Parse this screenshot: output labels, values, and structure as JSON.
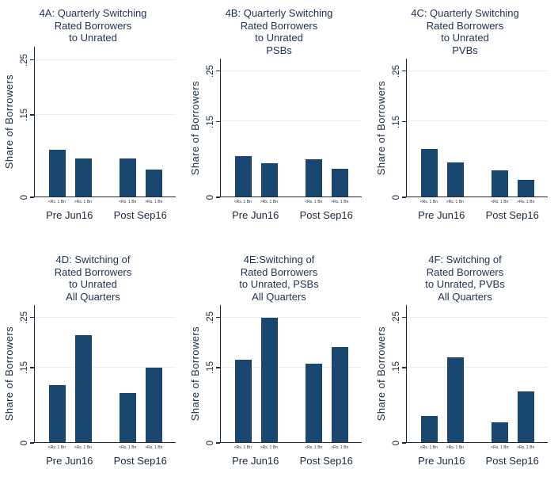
{
  "figure": {
    "background": "#ffffff",
    "bar_color": "#1a476f",
    "grid_color": "#eceeee",
    "axis_color": "#1c2b3a",
    "text_color": "#1a2b3d",
    "title_color": "#1d3150"
  },
  "axis": {
    "ylabel": "Share of Borrowers",
    "ytick_labels": [
      "0",
      ".15",
      ".25"
    ],
    "bar_labels": [
      "<Rs. 1 Bn",
      ">Rs. 1 Bn"
    ],
    "group_labels": [
      "Pre Jun16",
      "Post Sep16"
    ],
    "ymax": 0.275,
    "grid": true
  },
  "chart_data": [
    {
      "type": "bar",
      "panel": "4A",
      "title": "4A: Quarterly Switching\nRated Borrowers\nto Unrated",
      "categories": [
        "Pre Jun16 <Rs. 1 Bn",
        "Pre Jun16 >Rs. 1 Bn",
        "Post Sep16 <Rs. 1 Bn",
        "Post Sep16 >Rs. 1 Bn"
      ],
      "group_labels": [
        "Pre Jun16",
        "Post Sep16"
      ],
      "bar_labels": [
        "<Rs. 1 Bn",
        ">Rs. 1 Bn"
      ],
      "values": [
        0.085,
        0.07,
        0.07,
        0.05
      ],
      "xlabel": "",
      "ylabel": "Share of Borrowers",
      "yticks": [
        {
          "value": 0,
          "label": "0"
        },
        {
          "value": 0.15,
          "label": ".15"
        },
        {
          "value": 0.25,
          "label": ".25"
        }
      ],
      "ylim": [
        0,
        0.275
      ]
    },
    {
      "type": "bar",
      "panel": "4B",
      "title": "4B: Quarterly Switching\nRated Borrowers\nto Unrated\nPSBs",
      "categories": [
        "Pre Jun16 <Rs. 1 Bn",
        "Pre Jun16 >Rs. 1 Bn",
        "Post Sep16 <Rs. 1 Bn",
        "Post Sep16 >Rs. 1 Bn"
      ],
      "group_labels": [
        "Pre Jun16",
        "Post Sep16"
      ],
      "bar_labels": [
        "<Rs. 1 Bn",
        ">Rs. 1 Bn"
      ],
      "values": [
        0.08,
        0.067,
        0.075,
        0.055
      ],
      "xlabel": "",
      "ylabel": "Share of Borrowers",
      "yticks": [
        {
          "value": 0,
          "label": "0"
        },
        {
          "value": 0.15,
          "label": ".15"
        },
        {
          "value": 0.25,
          "label": ".25"
        }
      ],
      "ylim": [
        0,
        0.275
      ]
    },
    {
      "type": "bar",
      "panel": "4C",
      "title": "4C: Quarterly Switching\nRated Borrowers\nto Unrated\nPVBs",
      "categories": [
        "Pre Jun16 <Rs. 1 Bn",
        "Pre Jun16 >Rs. 1 Bn",
        "Post Sep16 <Rs. 1 Bn",
        "Post Sep16 >Rs. 1 Bn"
      ],
      "group_labels": [
        "Pre Jun16",
        "Post Sep16"
      ],
      "bar_labels": [
        "<Rs. 1 Bn",
        ">Rs. 1 Bn"
      ],
      "values": [
        0.095,
        0.068,
        0.052,
        0.033
      ],
      "xlabel": "",
      "ylabel": "Share of Borrowers",
      "yticks": [
        {
          "value": 0,
          "label": "0"
        },
        {
          "value": 0.15,
          "label": ".15"
        },
        {
          "value": 0.25,
          "label": ".25"
        }
      ],
      "ylim": [
        0,
        0.275
      ]
    },
    {
      "type": "bar",
      "panel": "4D",
      "title": "4D: Switching of\nRated Borrowers\nto Unrated\nAll Quarters",
      "categories": [
        "Pre Jun16 <Rs. 1 Bn",
        "Pre Jun16 >Rs. 1 Bn",
        "Post Sep16 <Rs. 1 Bn",
        "Post Sep16 >Rs. 1 Bn"
      ],
      "group_labels": [
        "Pre Jun16",
        "Post Sep16"
      ],
      "bar_labels": [
        "<Rs. 1 Bn",
        ">Rs. 1 Bn"
      ],
      "values": [
        0.115,
        0.215,
        0.098,
        0.15
      ],
      "xlabel": "",
      "ylabel": "Share of Borrowers",
      "yticks": [
        {
          "value": 0,
          "label": "0"
        },
        {
          "value": 0.15,
          "label": ".15"
        },
        {
          "value": 0.25,
          "label": ".25"
        }
      ],
      "ylim": [
        0,
        0.275
      ]
    },
    {
      "type": "bar",
      "panel": "4E",
      "title": "4E:Switching of\nRated Borrowers\nto Unrated, PSBs\nAll Quarters",
      "categories": [
        "Pre Jun16 <Rs. 1 Bn",
        "Pre Jun16 >Rs. 1 Bn",
        "Post Sep16 <Rs. 1 Bn",
        "Post Sep16 >Rs. 1 Bn"
      ],
      "group_labels": [
        "Pre Jun16",
        "Post Sep16"
      ],
      "bar_labels": [
        "<Rs. 1 Bn",
        ">Rs. 1 Bn"
      ],
      "values": [
        0.165,
        0.25,
        0.157,
        0.19
      ],
      "xlabel": "",
      "ylabel": "Share of Borrowers",
      "yticks": [
        {
          "value": 0,
          "label": "0"
        },
        {
          "value": 0.15,
          "label": ".15"
        },
        {
          "value": 0.25,
          "label": ".25"
        }
      ],
      "ylim": [
        0,
        0.275
      ]
    },
    {
      "type": "bar",
      "panel": "4F",
      "title": "4F: Switching of\nRated Borrowers\nto Unrated, PVBs\nAll Quarters",
      "categories": [
        "Pre Jun16 <Rs. 1 Bn",
        "Pre Jun16 >Rs. 1 Bn",
        "Post Sep16 <Rs. 1 Bn",
        "Post Sep16 >Rs. 1 Bn"
      ],
      "group_labels": [
        "Pre Jun16",
        "Post Sep16"
      ],
      "bar_labels": [
        "<Rs. 1 Bn",
        ">Rs. 1 Bn"
      ],
      "values": [
        0.053,
        0.17,
        0.04,
        0.102
      ],
      "xlabel": "",
      "ylabel": "Share of Borrowers",
      "yticks": [
        {
          "value": 0,
          "label": "0"
        },
        {
          "value": 0.15,
          "label": ".15"
        },
        {
          "value": 0.25,
          "label": ".25"
        }
      ],
      "ylim": [
        0,
        0.275
      ]
    }
  ]
}
